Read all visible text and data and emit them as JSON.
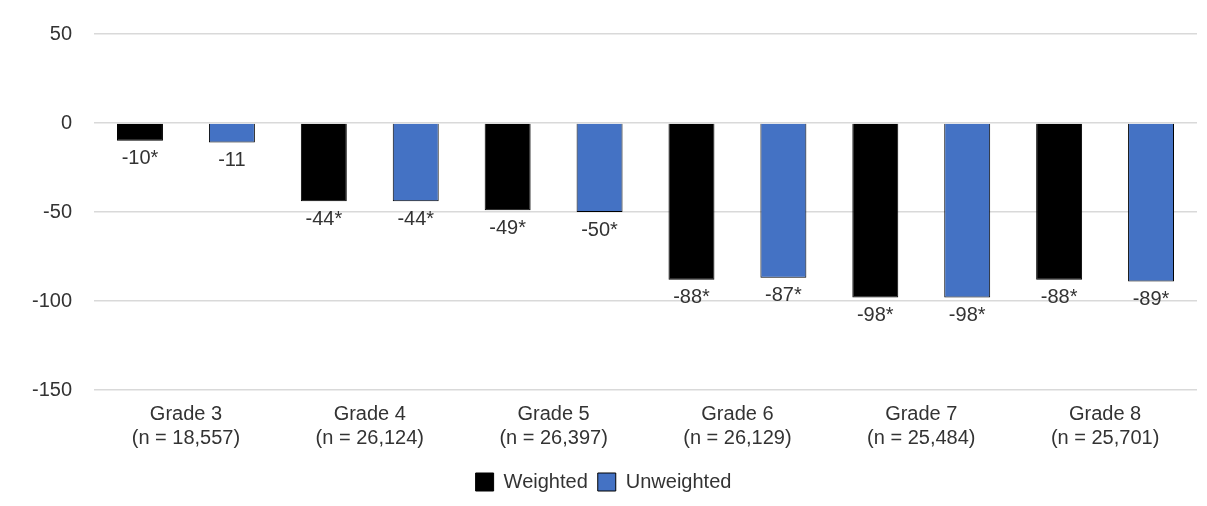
{
  "chart_data": {
    "type": "bar",
    "categories": [
      "Grade 3\n(n = 18,557)",
      "Grade 4\n(n = 26,124)",
      "Grade 5\n(n = 26,397)",
      "Grade 6\n(n = 26,129)",
      "Grade 7\n(n = 25,484)",
      "Grade 8\n(n = 25,701)"
    ],
    "series": [
      {
        "name": "Weighted",
        "color": "#000000",
        "values": [
          -10,
          -44,
          -49,
          -88,
          -98,
          -88
        ],
        "value_labels": [
          "-10*",
          "-44*",
          "-49*",
          "-88*",
          "-98*",
          "-88*"
        ]
      },
      {
        "name": "Unweighted",
        "color": "#4472c4",
        "values": [
          -11,
          -44,
          -50,
          -87,
          -98,
          -89
        ],
        "value_labels": [
          "-11",
          "-44*",
          "-50*",
          "-87*",
          "-98*",
          "-89*"
        ]
      }
    ],
    "ylim": [
      -150,
      50
    ],
    "yticks": [
      -150,
      -100,
      -50,
      0,
      50
    ],
    "grid": "y",
    "legend": "bottom"
  }
}
